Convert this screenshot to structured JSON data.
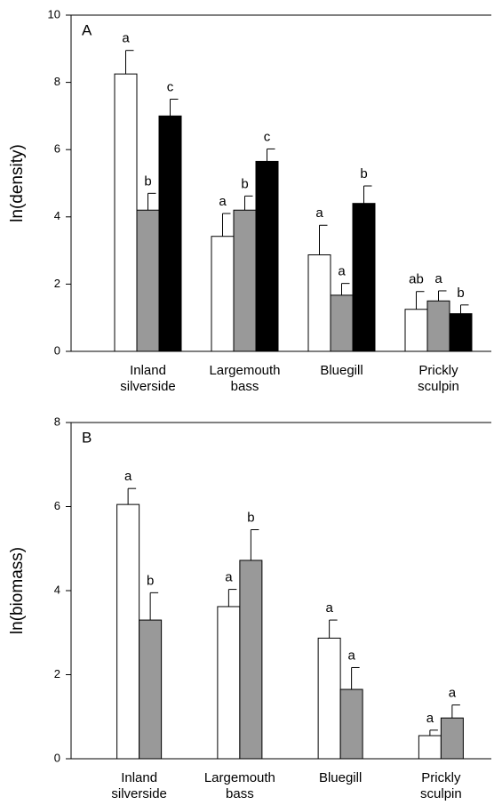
{
  "chart_data": [
    {
      "type": "bar",
      "panel": "A",
      "y_label": "ln(density)",
      "categories": [
        [
          "Inland",
          "silverside"
        ],
        [
          "Largemouth",
          "bass"
        ],
        [
          "Bluegill"
        ],
        [
          "Prickly",
          "sculpin"
        ]
      ],
      "series": [
        {
          "color": "#ffffff",
          "values": [
            8.25,
            3.42,
            2.87,
            1.25
          ],
          "errors": [
            0.7,
            0.68,
            0.88,
            0.53
          ],
          "labels": [
            "a",
            "a",
            "a",
            "ab"
          ]
        },
        {
          "color": "#999999",
          "values": [
            4.2,
            4.2,
            1.67,
            1.5
          ],
          "errors": [
            0.5,
            0.42,
            0.35,
            0.3
          ],
          "labels": [
            "b",
            "b",
            "a",
            "a"
          ]
        },
        {
          "color": "#000000",
          "values": [
            7.0,
            5.65,
            4.4,
            1.12
          ],
          "errors": [
            0.5,
            0.37,
            0.52,
            0.26
          ],
          "labels": [
            "c",
            "c",
            "b",
            "b"
          ]
        }
      ],
      "ylim": [
        0,
        10
      ],
      "yticks": [
        0,
        2,
        4,
        6,
        8,
        10
      ]
    },
    {
      "type": "bar",
      "panel": "B",
      "y_label": "ln(biomass)",
      "categories": [
        [
          "Inland",
          "silverside"
        ],
        [
          "Largemouth",
          "bass"
        ],
        [
          "Bluegill"
        ],
        [
          "Prickly",
          "sculpin"
        ]
      ],
      "series": [
        {
          "color": "#ffffff",
          "values": [
            6.05,
            3.62,
            2.87,
            0.55
          ],
          "errors": [
            0.38,
            0.41,
            0.43,
            0.13
          ],
          "labels": [
            "a",
            "a",
            "a",
            "a"
          ]
        },
        {
          "color": "#999999",
          "values": [
            3.3,
            4.72,
            1.65,
            0.97
          ],
          "errors": [
            0.65,
            0.73,
            0.52,
            0.31
          ],
          "labels": [
            "b",
            "b",
            "a",
            "a"
          ]
        }
      ],
      "ylim": [
        0,
        8
      ],
      "yticks": [
        0,
        2,
        4,
        6,
        8
      ]
    }
  ]
}
